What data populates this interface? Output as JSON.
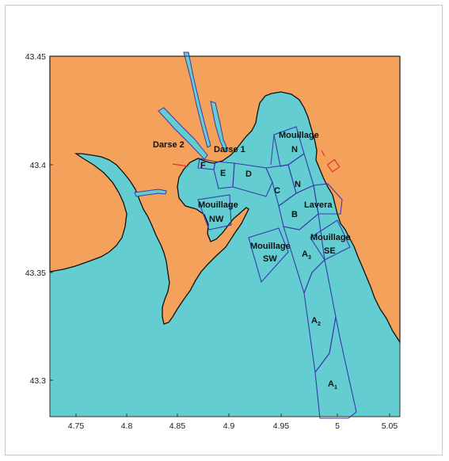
{
  "map": {
    "colors": {
      "land": "#f4a15c",
      "sea": "#63cdd2",
      "zone_outline": "#3a3aa8",
      "coastline": "#101010",
      "accent_red": "#e0332a"
    },
    "y_axis": {
      "tick_labels": [
        "43.45",
        "43.4",
        "43.35",
        "43.3"
      ]
    },
    "x_axis": {
      "tick_labels": [
        "4.75",
        "4.8",
        "4.85",
        "4.9",
        "4.95",
        "5",
        "5.05"
      ]
    },
    "zones": {
      "darse2": "Darse 2",
      "darse1": "Darse 1",
      "f": "F",
      "e": "E",
      "d": "D",
      "c": "C",
      "b": "B",
      "n1": "N",
      "n2": "N",
      "mouillage_n": "Mouillage",
      "mouillage_nw": "Mouillage",
      "nw": "NW",
      "mouillage_sw": "Mouillage",
      "sw": "SW",
      "mouillage_se": "Mouillage",
      "se": "SE",
      "lavera": "Lavera",
      "a3": "A",
      "a3_sub": "3",
      "a2": "A",
      "a2_sub": "2",
      "a1": "A",
      "a1_sub": "1"
    }
  }
}
